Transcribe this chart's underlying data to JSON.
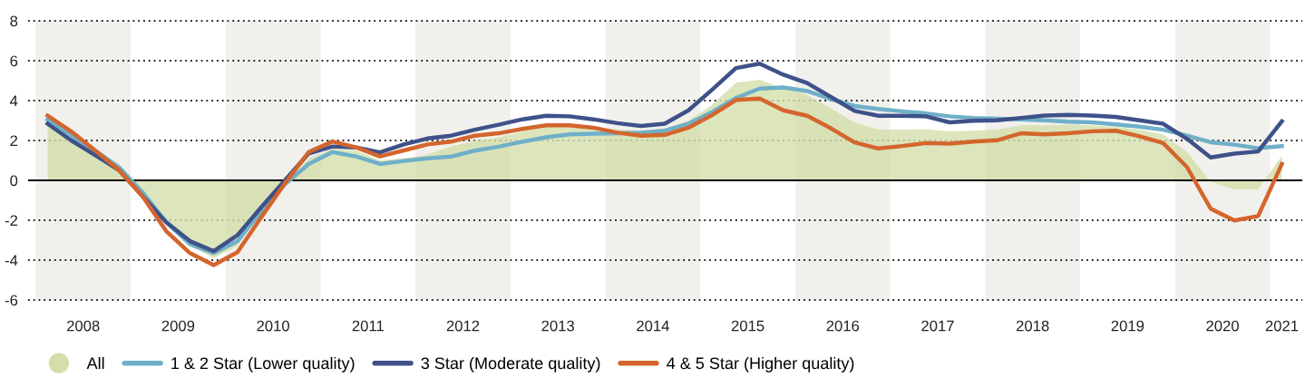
{
  "chart_data": {
    "type": "line",
    "x": [
      2008.125,
      2008.375,
      2008.625,
      2008.875,
      2009.125,
      2009.375,
      2009.625,
      2009.875,
      2010.125,
      2010.375,
      2010.625,
      2010.875,
      2011.125,
      2011.375,
      2011.625,
      2011.875,
      2012.125,
      2012.375,
      2012.625,
      2012.875,
      2013.125,
      2013.375,
      2013.625,
      2013.875,
      2014.125,
      2014.375,
      2014.625,
      2014.875,
      2015.125,
      2015.375,
      2015.625,
      2015.875,
      2016.125,
      2016.375,
      2016.625,
      2016.875,
      2017.125,
      2017.375,
      2017.625,
      2017.875,
      2018.125,
      2018.375,
      2018.625,
      2018.875,
      2019.125,
      2019.375,
      2019.625,
      2019.875,
      2020.125,
      2020.375,
      2020.625,
      2020.875,
      2021.125
    ],
    "series": [
      {
        "name": "All",
        "type": "area",
        "color": "#d3deaa",
        "values": [
          2.75,
          2.0,
          1.3,
          0.55,
          -0.7,
          -2.2,
          -3.3,
          -3.9,
          -3.3,
          -1.6,
          -0.2,
          1.1,
          1.6,
          1.5,
          1.0,
          1.1,
          1.3,
          1.7,
          2.0,
          2.15,
          2.45,
          2.7,
          2.7,
          2.6,
          2.55,
          2.5,
          2.6,
          3.0,
          3.8,
          4.9,
          5.05,
          4.6,
          4.3,
          3.6,
          2.9,
          2.54,
          2.54,
          2.57,
          2.46,
          2.49,
          2.54,
          2.76,
          2.76,
          2.79,
          2.76,
          2.69,
          2.54,
          2.31,
          1.42,
          -0.07,
          -0.45,
          -0.45,
          1.24
        ]
      },
      {
        "name": "1 & 2 Star (Lower quality)",
        "color": "#6fafc9",
        "values": [
          3.05,
          2.25,
          1.5,
          0.67,
          -0.6,
          -2.1,
          -3.2,
          -3.65,
          -3.05,
          -1.55,
          -0.2,
          0.82,
          1.42,
          1.2,
          0.82,
          0.97,
          1.1,
          1.19,
          1.49,
          1.69,
          1.94,
          2.16,
          2.31,
          2.34,
          2.36,
          2.39,
          2.49,
          2.84,
          3.43,
          4.13,
          4.6,
          4.66,
          4.48,
          4.07,
          3.73,
          3.58,
          3.46,
          3.36,
          3.21,
          3.13,
          3.09,
          3.06,
          3.01,
          2.94,
          2.91,
          2.81,
          2.69,
          2.54,
          2.24,
          1.91,
          1.79,
          1.61,
          1.72
        ]
      },
      {
        "name": "3 Star (Moderate quality)",
        "color": "#3f5189",
        "values": [
          2.84,
          2.0,
          1.27,
          0.52,
          -0.8,
          -2.1,
          -3.05,
          -3.55,
          -2.75,
          -1.35,
          0.0,
          1.35,
          1.7,
          1.65,
          1.4,
          1.8,
          2.1,
          2.24,
          2.54,
          2.79,
          3.06,
          3.24,
          3.21,
          3.06,
          2.87,
          2.73,
          2.84,
          3.51,
          4.55,
          5.63,
          5.85,
          5.3,
          4.88,
          4.18,
          3.48,
          3.24,
          3.24,
          3.21,
          2.91,
          2.99,
          3.01,
          3.13,
          3.25,
          3.28,
          3.25,
          3.18,
          3.01,
          2.84,
          2.09,
          1.15,
          1.34,
          1.45,
          2.96
        ]
      },
      {
        "name": "4 & 5 Star (Higher quality)",
        "color": "#d4652c",
        "values": [
          3.25,
          2.45,
          1.5,
          0.52,
          -0.8,
          -2.55,
          -3.65,
          -4.25,
          -3.6,
          -1.85,
          -0.15,
          1.42,
          1.95,
          1.65,
          1.2,
          1.5,
          1.8,
          1.94,
          2.24,
          2.36,
          2.58,
          2.76,
          2.76,
          2.64,
          2.39,
          2.24,
          2.28,
          2.64,
          3.28,
          4.03,
          4.1,
          3.51,
          3.24,
          2.61,
          1.9,
          1.6,
          1.72,
          1.87,
          1.84,
          1.94,
          2.01,
          2.36,
          2.31,
          2.36,
          2.46,
          2.49,
          2.21,
          1.87,
          0.67,
          -1.42,
          -2.01,
          -1.79,
          0.82
        ]
      }
    ],
    "xlim": [
      2007.92,
      2021.34
    ],
    "ylim": [
      -6,
      8
    ],
    "xticks": [
      {
        "value": 2008.5,
        "label": "2008"
      },
      {
        "value": 2009.5,
        "label": "2009"
      },
      {
        "value": 2010.5,
        "label": "2010"
      },
      {
        "value": 2011.5,
        "label": "2011"
      },
      {
        "value": 2012.5,
        "label": "2012"
      },
      {
        "value": 2013.5,
        "label": "2013"
      },
      {
        "value": 2014.5,
        "label": "2014"
      },
      {
        "value": 2015.5,
        "label": "2015"
      },
      {
        "value": 2016.5,
        "label": "2016"
      },
      {
        "value": 2017.5,
        "label": "2017"
      },
      {
        "value": 2018.5,
        "label": "2018"
      },
      {
        "value": 2019.5,
        "label": "2019"
      },
      {
        "value": 2020.5,
        "label": "2020"
      },
      {
        "value": 2021.125,
        "label": "2021"
      }
    ],
    "yticks": [
      -6,
      -4,
      -2,
      0,
      2,
      4,
      6,
      8
    ],
    "grid": "y",
    "line_style": "solid",
    "legend": "bottom",
    "ref_lines": [
      {
        "axis": "y",
        "value": 0,
        "color": "#000000",
        "line_style": "solid"
      }
    ],
    "bands": [
      {
        "axis": "x",
        "from": 2008,
        "to": 2009,
        "color": "#f1f0ec"
      },
      {
        "axis": "x",
        "from": 2010,
        "to": 2011,
        "color": "#f1f0ec"
      },
      {
        "axis": "x",
        "from": 2012,
        "to": 2013,
        "color": "#f1f0ec"
      },
      {
        "axis": "x",
        "from": 2014,
        "to": 2015,
        "color": "#f1f0ec"
      },
      {
        "axis": "x",
        "from": 2016,
        "to": 2017,
        "color": "#f1f0ec"
      },
      {
        "axis": "x",
        "from": 2018,
        "to": 2019,
        "color": "#f1f0ec"
      },
      {
        "axis": "x",
        "from": 2020,
        "to": 2021,
        "color": "#f1f0ec"
      }
    ]
  }
}
